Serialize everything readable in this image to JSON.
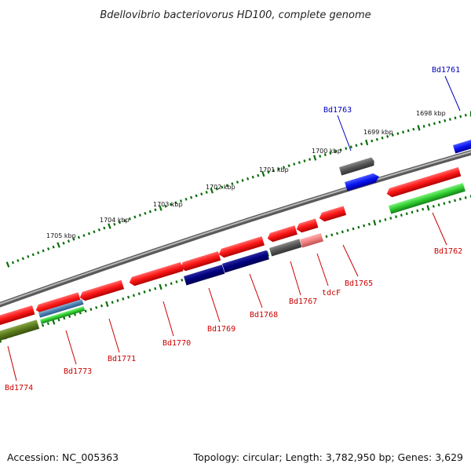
{
  "title": "Bdellovibrio bacteriovorus HD100, complete genome",
  "footer": {
    "accession": "Accession: NC_005363",
    "summary": "Topology: circular; Length: 3,782,950 bp; Genes: 3,629"
  },
  "kbp_labels": [
    "1698 kbp",
    "1699 kbp",
    "1700 kbp",
    "1701 kbp",
    "1702 kbp",
    "1703 kbp",
    "1704 kbp",
    "1705 kbp"
  ],
  "gene_labels": [
    {
      "id": "bd1761",
      "text": "Bd1761",
      "color": "#0000bb"
    },
    {
      "id": "bd1762",
      "text": "Bd1762",
      "color": "#cc0000"
    },
    {
      "id": "bd1763",
      "text": "Bd1763",
      "color": "#0000bb"
    },
    {
      "id": "bd1765",
      "text": "Bd1765",
      "color": "#cc0000"
    },
    {
      "id": "tdcf",
      "text": "tdcF",
      "color": "#cc0000"
    },
    {
      "id": "bd1767",
      "text": "Bd1767",
      "color": "#cc0000"
    },
    {
      "id": "bd1768",
      "text": "Bd1768",
      "color": "#cc0000"
    },
    {
      "id": "bd1769",
      "text": "Bd1769",
      "color": "#cc0000"
    },
    {
      "id": "bd1770",
      "text": "Bd1770",
      "color": "#cc0000"
    },
    {
      "id": "bd1771",
      "text": "Bd1771",
      "color": "#cc0000"
    },
    {
      "id": "bd1773",
      "text": "Bd1773",
      "color": "#cc0000"
    },
    {
      "id": "bd1774",
      "text": "Bd1774",
      "color": "#cc0000"
    }
  ],
  "colors": {
    "forward_gene": "#e8161c",
    "reverse_gene": "#000080",
    "blue_gene": "#0a14f0",
    "gray_gene": "#555555",
    "green_feature": "#2ecc2e",
    "olive_feature": "#5a7a1a",
    "steel_feature": "#4a7fb0",
    "pink_feature": "#f08080",
    "backbone": "#7a7a7a",
    "ruler": "#0a6e0a"
  }
}
